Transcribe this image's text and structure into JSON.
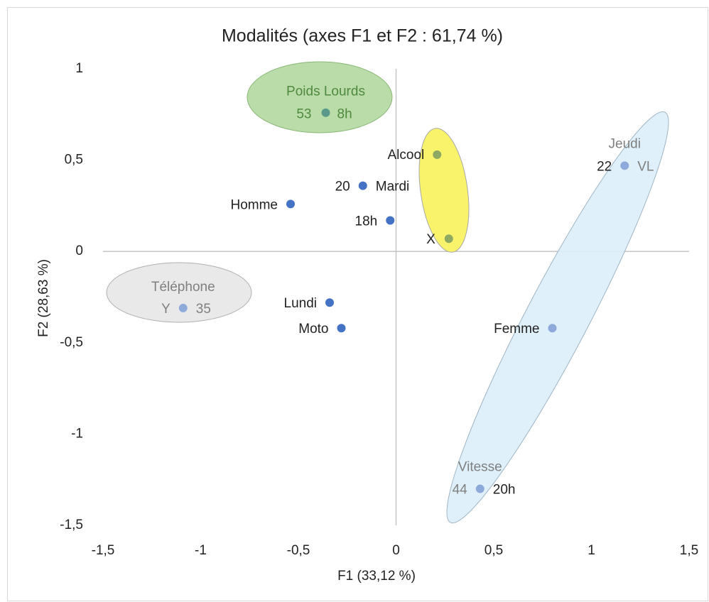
{
  "chart_data": {
    "type": "scatter",
    "title": "Modalités (axes F1 et F2 : 61,74 %)",
    "x_label": "F1 (33,12 %)",
    "y_label": "F2 (28,63 %)",
    "xlim": [
      -1.5,
      1.5
    ],
    "ylim": [
      -1.5,
      1
    ],
    "xticks": [
      {
        "value": -1.5,
        "label": "-1,5"
      },
      -1,
      {
        "value": -0.5,
        "label": "-0,5"
      },
      0,
      {
        "value": 0.5,
        "label": "0,5"
      },
      1,
      {
        "value": 1.5,
        "label": "1,5"
      }
    ],
    "yticks": [
      {
        "value": -1.5,
        "label": "-1,5"
      },
      -1,
      {
        "value": -0.5,
        "label": "-0,5"
      },
      0,
      {
        "value": 0.5,
        "label": "0,5"
      },
      1
    ],
    "points": [
      {
        "labels": [
          "Poids Lourds",
          "53",
          "8h"
        ],
        "x": -0.36,
        "y": 0.76,
        "color": "#5b9a8b"
      },
      {
        "labels": [
          "Alcool"
        ],
        "x": 0.21,
        "y": 0.53,
        "color": "#8fa862"
      },
      {
        "labels": [
          "X"
        ],
        "x": 0.27,
        "y": 0.07,
        "color": "#8fa862"
      },
      {
        "labels": [
          "Jeudi",
          "22",
          "VL"
        ],
        "x": 1.17,
        "y": 0.47,
        "color": "#8eaadb"
      },
      {
        "labels": [
          "20",
          "Mardi"
        ],
        "x": -0.17,
        "y": 0.36,
        "color": "#4472c4"
      },
      {
        "labels": [
          "Homme"
        ],
        "x": -0.54,
        "y": 0.26,
        "color": "#4472c4"
      },
      {
        "labels": [
          "18h"
        ],
        "x": -0.03,
        "y": 0.17,
        "color": "#4472c4"
      },
      {
        "labels": [
          "Téléphone",
          "Y",
          "35"
        ],
        "x": -1.09,
        "y": -0.31,
        "color": "#8eaadb"
      },
      {
        "labels": [
          "Lundi"
        ],
        "x": -0.34,
        "y": -0.28,
        "color": "#4472c4"
      },
      {
        "labels": [
          "Moto"
        ],
        "x": -0.28,
        "y": -0.42,
        "color": "#4472c4"
      },
      {
        "labels": [
          "Femme"
        ],
        "x": 0.8,
        "y": -0.42,
        "color": "#8eaadb"
      },
      {
        "labels": [
          "Vitesse",
          "44",
          "20h"
        ],
        "x": 0.43,
        "y": -1.3,
        "color": "#8eaadb"
      }
    ]
  }
}
